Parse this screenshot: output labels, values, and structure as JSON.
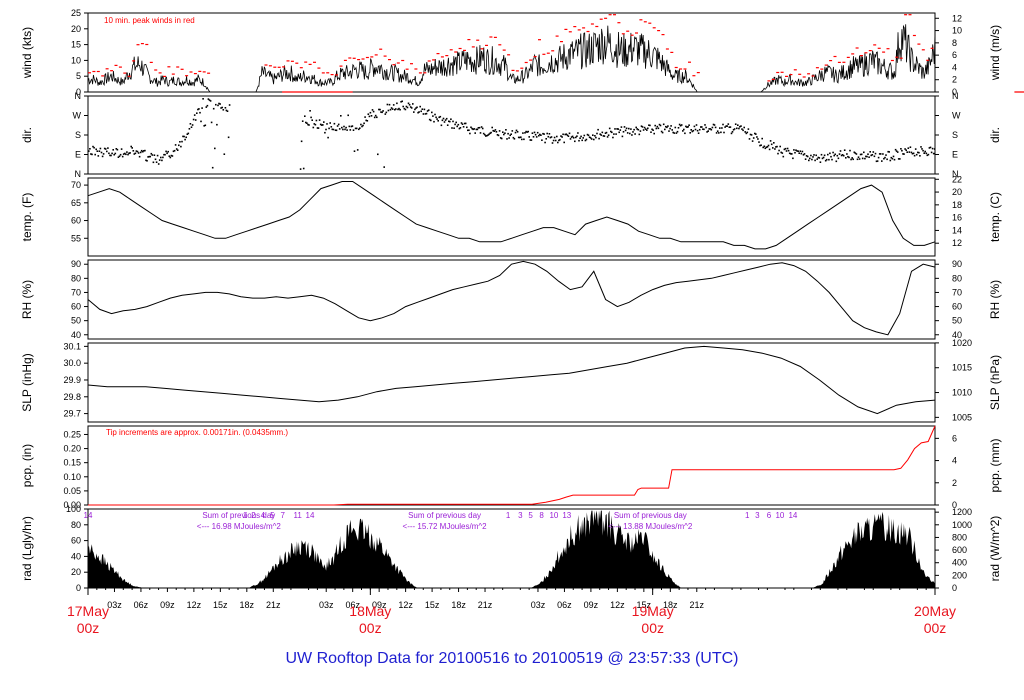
{
  "footer": {
    "title_prefix": "UW Rooftop Data for",
    "start": "20100516",
    "to_word": "to",
    "end": "20100519",
    "at_word": "@",
    "time": "23:57:33",
    "tz": "(UTC)"
  },
  "colors": {
    "peak": "#ff0000",
    "annotation": "#ff0000",
    "purple": "#9a1fd6",
    "axis": "#000000",
    "footer": "#1f1fd0",
    "date_label": "#e8141e"
  },
  "chart_data": [
    {
      "type": "line",
      "panel": "wind",
      "ylabel": "wind (kts)",
      "ylabel_right": "wind (m/s)",
      "ylim": [
        0,
        25
      ],
      "yticks": [
        0,
        5,
        10,
        15,
        20,
        25
      ],
      "yticks_right": [
        0,
        2,
        4,
        6,
        8,
        10,
        12
      ],
      "annotation": "10 min. peak winds in red",
      "series": [
        {
          "values_kts_hourly": [
            4,
            4,
            3,
            4,
            5,
            4,
            3,
            6,
            8,
            9,
            6,
            4,
            3,
            4,
            3,
            4,
            3,
            4,
            3,
            4,
            3,
            0,
            0,
            0,
            0,
            0,
            0,
            0,
            0,
            0,
            6,
            5,
            4,
            5,
            6,
            6,
            4,
            5,
            5,
            4,
            3,
            3,
            3,
            5,
            6,
            6,
            7,
            7,
            6,
            8,
            8,
            7,
            6,
            6,
            5,
            5,
            4,
            3,
            7,
            7,
            8,
            8,
            9,
            9,
            9,
            10,
            10,
            10,
            11,
            10,
            10,
            9,
            8,
            4,
            4,
            5,
            6,
            9,
            8,
            9,
            10,
            10,
            11,
            12,
            12,
            13,
            13,
            14,
            15,
            16,
            15,
            14,
            13,
            13,
            14,
            13,
            13,
            12,
            11,
            9,
            7,
            5,
            5,
            5,
            3,
            0,
            0,
            0,
            0,
            0,
            0,
            0,
            0,
            0,
            0,
            0,
            0,
            2,
            3,
            4,
            3,
            4,
            3,
            3,
            3,
            4,
            5,
            6,
            6,
            5,
            6,
            7,
            8,
            8,
            9,
            10,
            9,
            8,
            7,
            6,
            18,
            15,
            10,
            8,
            6,
            8,
            14
          ]
        }
      ]
    },
    {
      "type": "scatter",
      "panel": "direction",
      "ylabel": "dir.",
      "yticks_left": [
        "N",
        "W",
        "S",
        "E",
        "N"
      ],
      "yticks_right": [
        "N",
        "W",
        "S",
        "E",
        "N"
      ]
    },
    {
      "type": "line",
      "panel": "temperature",
      "ylabel": "temp. (F)",
      "ylabel_right": "temp. (C)",
      "ylim": [
        50,
        72
      ],
      "yticks": [
        55,
        60,
        65,
        70
      ],
      "yticks_right": [
        12,
        14,
        16,
        18,
        20,
        22
      ],
      "series": [
        {
          "values_f_hourly": [
            67,
            68,
            69,
            68,
            66,
            64,
            62,
            60,
            59,
            58,
            57,
            56,
            55,
            55,
            56,
            57,
            58,
            59,
            60,
            61,
            63,
            66,
            69,
            70,
            71,
            71,
            69,
            67,
            65,
            63,
            61,
            59,
            58,
            57,
            56,
            55,
            55,
            54,
            54,
            54,
            55,
            56,
            57,
            58,
            58,
            57,
            56,
            59,
            60,
            61,
            60,
            59,
            57,
            56,
            55,
            55,
            54,
            54,
            54,
            54,
            54,
            53,
            53,
            52,
            52,
            53,
            55,
            57,
            59,
            61,
            63,
            65,
            67,
            69,
            70,
            68,
            60,
            55,
            53,
            53,
            54
          ]
        }
      ]
    },
    {
      "type": "line",
      "panel": "rh",
      "ylabel": "RH (%)",
      "ylabel_right": "RH (%)",
      "ylim": [
        37,
        93
      ],
      "yticks": [
        40,
        50,
        60,
        70,
        80,
        90
      ],
      "yticks_right": [
        40,
        50,
        60,
        70,
        80,
        90
      ],
      "series": [
        {
          "values_pct_hourly": [
            65,
            58,
            55,
            57,
            58,
            60,
            63,
            66,
            68,
            69,
            70,
            70,
            69,
            67,
            66,
            66,
            67,
            66,
            67,
            68,
            66,
            62,
            57,
            52,
            50,
            52,
            55,
            60,
            63,
            66,
            69,
            72,
            74,
            76,
            78,
            82,
            90,
            92,
            90,
            85,
            78,
            72,
            74,
            85,
            65,
            60,
            63,
            68,
            72,
            75,
            77,
            78,
            79,
            80,
            82,
            84,
            86,
            88,
            90,
            91,
            89,
            85,
            78,
            70,
            60,
            50,
            45,
            42,
            40,
            55,
            85,
            90,
            88
          ]
        }
      ]
    },
    {
      "type": "line",
      "panel": "slp",
      "ylabel": "SLP (inHg)",
      "ylabel_right": "SLP (hPa)",
      "ylim": [
        29.65,
        30.12
      ],
      "yticks": [
        29.7,
        29.8,
        29.9,
        30.0,
        30.1
      ],
      "yticks_right": [
        1005,
        1010,
        1015,
        1020
      ],
      "series": [
        {
          "values_inhg_hourly": [
            29.87,
            29.86,
            29.86,
            29.86,
            29.85,
            29.84,
            29.83,
            29.82,
            29.81,
            29.8,
            29.79,
            29.78,
            29.77,
            29.78,
            29.8,
            29.83,
            29.85,
            29.86,
            29.87,
            29.88,
            29.89,
            29.9,
            29.91,
            29.92,
            29.93,
            29.94,
            29.96,
            29.98,
            30.0,
            30.03,
            30.06,
            30.09,
            30.1,
            30.09,
            30.08,
            30.06,
            30.03,
            29.98,
            29.9,
            29.81,
            29.74,
            29.7,
            29.75,
            29.77,
            29.78
          ]
        }
      ]
    },
    {
      "type": "line",
      "panel": "precip",
      "ylabel": "pcp. (in)",
      "ylabel_right": "pcp. (mm)",
      "ylim": [
        0,
        0.28
      ],
      "yticks": [
        0.0,
        0.05,
        0.1,
        0.15,
        0.2,
        0.25
      ],
      "yticks_right": [
        0,
        2,
        4,
        6
      ],
      "annotation": "Tip increments are approx. 0.00171in. (0.0435mm.)",
      "series": [
        {
          "points_hours_in": [
            [
              0,
              0
            ],
            [
              36,
              0
            ],
            [
              38,
              0.003
            ],
            [
              65,
              0.003
            ],
            [
              67,
              0.01
            ],
            [
              69,
              0.02
            ],
            [
              70,
              0.028
            ],
            [
              71,
              0.035
            ],
            [
              80,
              0.035
            ],
            [
              80.5,
              0.055
            ],
            [
              81,
              0.06
            ],
            [
              85,
              0.06
            ],
            [
              85.5,
              0.125
            ],
            [
              118,
              0.125
            ],
            [
              119,
              0.13
            ],
            [
              120,
              0.16
            ],
            [
              121,
              0.2
            ],
            [
              122,
              0.22
            ],
            [
              123,
              0.225
            ],
            [
              124,
              0.28
            ]
          ]
        }
      ]
    },
    {
      "type": "area",
      "panel": "radiation",
      "ylabel": "rad (Lgly/hr)",
      "ylabel_right": "rad (W/m^2)",
      "ylim": [
        0,
        100
      ],
      "yticks": [
        0,
        20,
        40,
        60,
        80,
        100
      ],
      "yticks_right": [
        0,
        200,
        400,
        600,
        800,
        1000,
        1200
      ],
      "hour_markers": [
        {
          "text": "14",
          "hour": 0
        },
        {
          "text": "1",
          "hour": 23
        },
        {
          "text": "2",
          "hour": 24.2
        },
        {
          "text": "4",
          "hour": 25.6
        },
        {
          "text": "5",
          "hour": 27
        },
        {
          "text": "7",
          "hour": 28.5
        },
        {
          "text": "11",
          "hour": 30.7
        },
        {
          "text": "14",
          "hour": 32.5
        },
        {
          "text": "1",
          "hour": 61.5
        },
        {
          "text": "3",
          "hour": 63.3
        },
        {
          "text": "5",
          "hour": 64.8
        },
        {
          "text": "8",
          "hour": 66.4
        },
        {
          "text": "10",
          "hour": 68.2
        },
        {
          "text": "13",
          "hour": 70.1
        },
        {
          "text": "1",
          "hour": 96.5
        },
        {
          "text": "3",
          "hour": 98.0
        },
        {
          "text": "6",
          "hour": 99.7
        },
        {
          "text": "10",
          "hour": 101.3
        },
        {
          "text": "14",
          "hour": 103.2
        }
      ],
      "day_sums": [
        {
          "line1": "Sum of previous day",
          "line2": "<--- 16.98 MJoules/m^2",
          "hour": 18
        },
        {
          "line1": "Sum of previous day",
          "line2": "<--- 15.72 MJoules/m^2",
          "hour": 42
        },
        {
          "line1": "Sum of previous day",
          "line2": "<--- 13.88 MJoules/m^2",
          "hour": 66
        }
      ],
      "series": [
        {
          "values_lgly_hourly": [
            50,
            42,
            30,
            20,
            8,
            2,
            0,
            0,
            0,
            0,
            0,
            0,
            0,
            0,
            0,
            0,
            0,
            0,
            5,
            15,
            30,
            40,
            50,
            55,
            45,
            25,
            35,
            60,
            75,
            72,
            65,
            55,
            38,
            22,
            8,
            0,
            0,
            0,
            0,
            0,
            0,
            0,
            0,
            0,
            0,
            0,
            0,
            0,
            5,
            20,
            40,
            60,
            75,
            80,
            95,
            85,
            70,
            60,
            55,
            65,
            40,
            25,
            10,
            0,
            0,
            0,
            0,
            0,
            0,
            0,
            0,
            0,
            0,
            0,
            0,
            0,
            0,
            0,
            5,
            25,
            45,
            60,
            70,
            75,
            78,
            76,
            74,
            70,
            45,
            15,
            5
          ]
        }
      ]
    }
  ],
  "x_axis": {
    "hour_labels": [
      "03z",
      "06z",
      "09z",
      "12z",
      "15z",
      "18z",
      "21z",
      "03z",
      "06z",
      "09z",
      "12z",
      "15z",
      "18z",
      "21z",
      "03z",
      "06z",
      "09z",
      "12z",
      "15z",
      "18z",
      "21z"
    ],
    "day_labels": [
      {
        "date": "17May",
        "time": "00z"
      },
      {
        "date": "18May",
        "time": "00z"
      },
      {
        "date": "19May",
        "time": "00z"
      },
      {
        "date": "20May",
        "time": "00z"
      }
    ]
  }
}
